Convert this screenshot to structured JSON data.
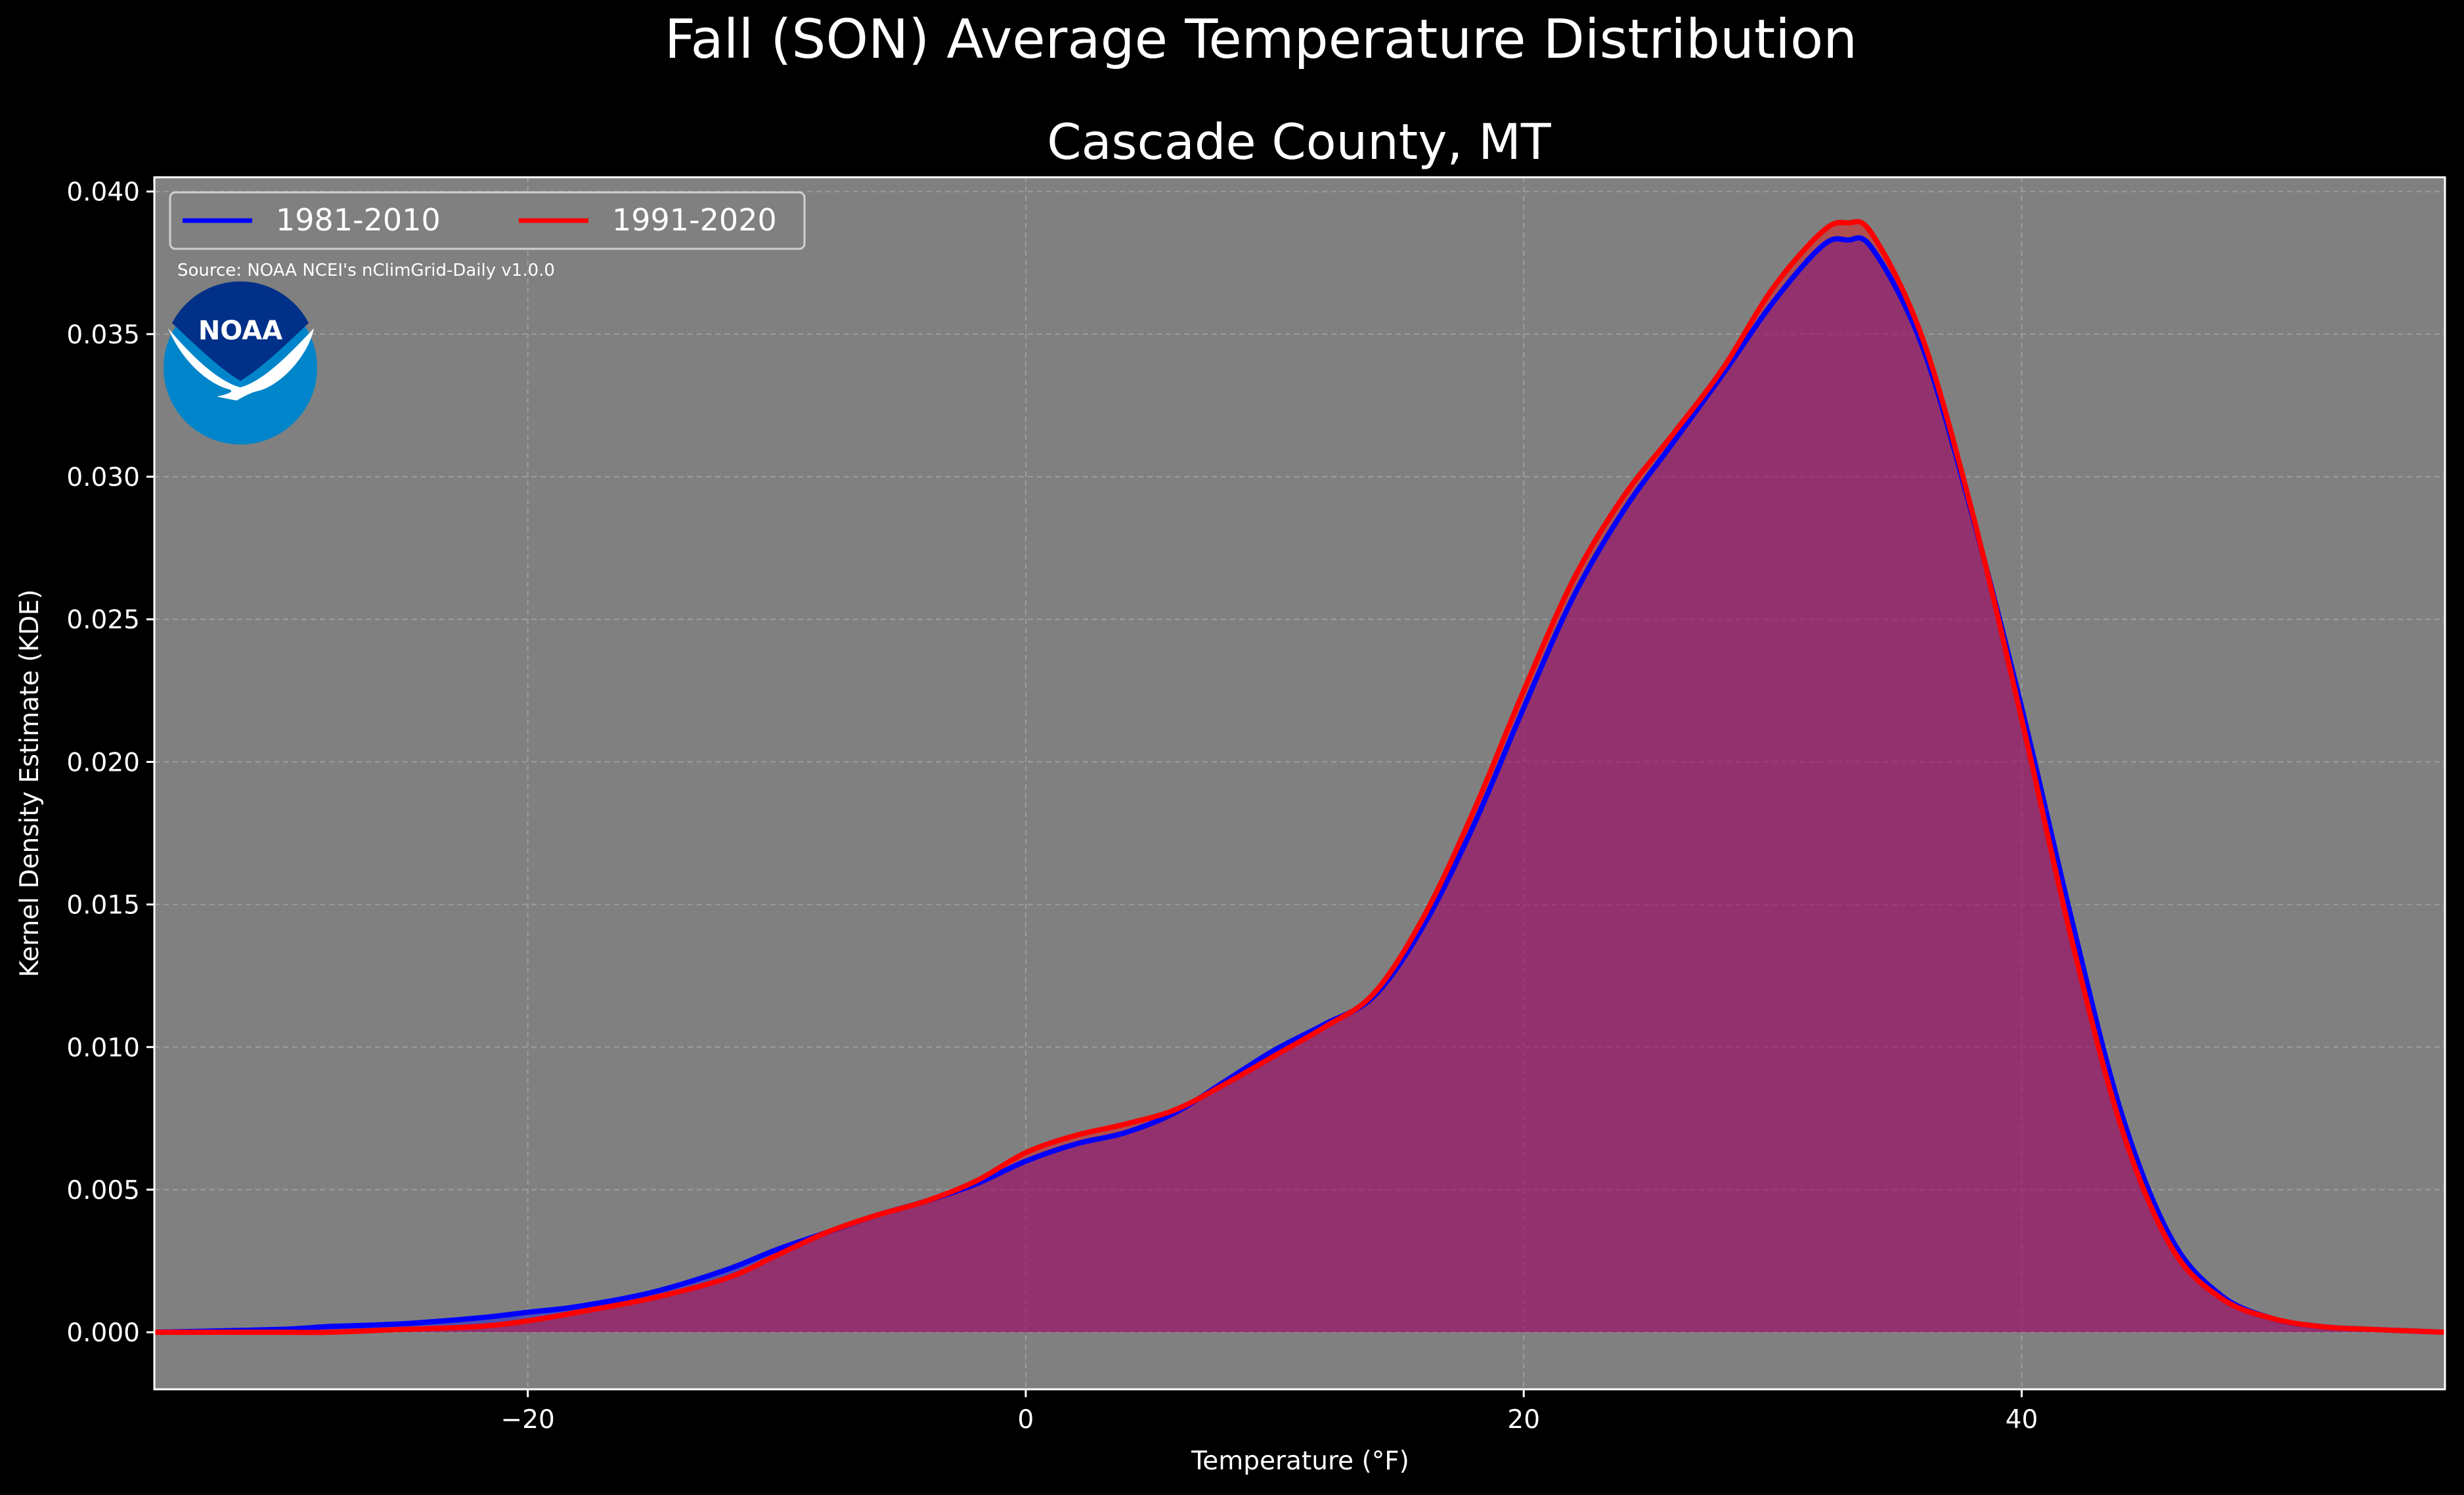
{
  "chart_data": {
    "type": "area",
    "suptitle": "Fall (SON) Average Temperature Distribution",
    "title": "Cascade County, MT",
    "xlabel": "Temperature ($^\\circ$F)",
    "xlabel_display": "Temperature (°F)",
    "ylabel": "Kernel Density Estimate (KDE)",
    "xlim": [
      -35,
      57
    ],
    "ylim": [
      -0.002,
      0.0405
    ],
    "xticks": [
      -20,
      0,
      20,
      40
    ],
    "xtick_labels": [
      "−20",
      "0",
      "20",
      "40"
    ],
    "yticks": [
      0.0,
      0.005,
      0.01,
      0.015,
      0.02,
      0.025,
      0.03,
      0.035,
      0.04
    ],
    "ytick_labels": [
      "0.000",
      "0.005",
      "0.010",
      "0.015",
      "0.020",
      "0.025",
      "0.030",
      "0.035",
      "0.040"
    ],
    "grid": true,
    "legend_position": "top-left",
    "source_note": "Source: NOAA NCEI's nClimGrid-Daily v1.0.0",
    "logo_text": "NOAA",
    "colors": {
      "figure_bg": "#000000",
      "axes_bg": "#808080",
      "text": "#ffffff",
      "grid": "#b0b0b0",
      "fill": "#a0185a"
    },
    "series": [
      {
        "name": "1981-2010",
        "color": "#0000ff",
        "x": [
          -35,
          -30,
          -28,
          -25,
          -22,
          -20,
          -18,
          -15,
          -12,
          -10,
          -8,
          -6,
          -4,
          -2,
          0,
          2,
          4,
          6,
          8,
          10,
          12,
          14,
          16,
          18,
          20,
          22,
          24,
          26,
          28,
          30,
          32,
          33,
          34,
          36,
          38,
          40,
          42,
          44,
          46,
          48,
          50,
          52,
          54,
          57
        ],
        "y": [
          0.0,
          0.0001,
          0.0002,
          0.0003,
          0.0005,
          0.0007,
          0.0009,
          0.0014,
          0.0022,
          0.0029,
          0.0035,
          0.0041,
          0.0046,
          0.0052,
          0.006,
          0.0066,
          0.007,
          0.0077,
          0.0088,
          0.0099,
          0.0108,
          0.0118,
          0.0143,
          0.0178,
          0.0219,
          0.0258,
          0.0288,
          0.0312,
          0.0336,
          0.0361,
          0.0381,
          0.0383,
          0.038,
          0.0346,
          0.0287,
          0.0219,
          0.0145,
          0.0077,
          0.0033,
          0.0013,
          0.0005,
          0.0002,
          0.0001,
          0.0
        ]
      },
      {
        "name": "1991-2020",
        "color": "#ff0000",
        "x": [
          -35,
          -30,
          -28,
          -25,
          -22,
          -20,
          -18,
          -15,
          -12,
          -10,
          -8,
          -6,
          -4,
          -2,
          0,
          2,
          4,
          6,
          8,
          10,
          12,
          14,
          16,
          18,
          20,
          22,
          24,
          26,
          28,
          30,
          32,
          33,
          34,
          36,
          38,
          40,
          42,
          44,
          46,
          48,
          50,
          52,
          54,
          57
        ],
        "y": [
          0.0,
          0.0,
          0.0,
          0.0001,
          0.0002,
          0.0004,
          0.0007,
          0.0012,
          0.0019,
          0.0027,
          0.0035,
          0.0041,
          0.0046,
          0.0053,
          0.0063,
          0.0069,
          0.0073,
          0.0078,
          0.0087,
          0.0097,
          0.0107,
          0.0119,
          0.0146,
          0.0183,
          0.0225,
          0.0264,
          0.0293,
          0.0315,
          0.0338,
          0.0366,
          0.0386,
          0.0389,
          0.0385,
          0.0349,
          0.0288,
          0.0215,
          0.0138,
          0.0072,
          0.003,
          0.0012,
          0.0005,
          0.0002,
          0.0001,
          0.0
        ]
      }
    ]
  }
}
